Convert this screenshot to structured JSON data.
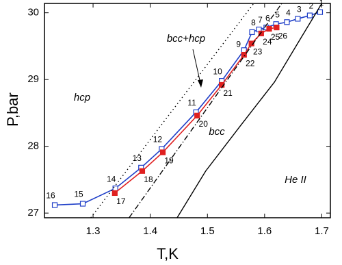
{
  "chart_data": {
    "type": "line",
    "xlabel": "T,K",
    "ylabel": "P,bar",
    "xlim": [
      1.215,
      1.715
    ],
    "ylim": [
      26.93,
      30.14
    ],
    "xticks": [
      1.3,
      1.4,
      1.5,
      1.6,
      1.7
    ],
    "yticks": [
      27,
      28,
      29,
      30
    ],
    "annotations": [
      "bcc+hcp",
      "hcp",
      "bcc",
      "He II"
    ],
    "series": [
      {
        "color": "#1f3fc8",
        "marker": "open-square",
        "x": [
          1.697,
          1.679,
          1.658,
          1.639,
          1.62,
          1.603,
          1.59,
          1.578,
          1.564,
          1.525,
          1.48,
          1.42,
          1.384,
          1.339,
          1.282,
          1.233
        ],
        "values": [
          30.01,
          29.96,
          29.91,
          29.86,
          29.83,
          29.78,
          29.75,
          29.71,
          29.44,
          28.98,
          28.51,
          27.96,
          27.68,
          27.37,
          27.14,
          27.12
        ],
        "labels": [
          "1",
          "2",
          "3",
          "4",
          "5",
          "6",
          "7",
          "8",
          "9",
          "10",
          "11",
          "12",
          "13",
          "14",
          "15",
          "16"
        ]
      },
      {
        "color": "#e02020",
        "marker": "filled-square",
        "x": [
          1.338,
          1.386,
          1.422,
          1.482,
          1.525,
          1.564,
          1.577,
          1.594,
          1.608,
          1.621
        ],
        "values": [
          27.3,
          27.63,
          27.91,
          28.46,
          28.92,
          29.37,
          29.54,
          29.69,
          29.76,
          29.78
        ],
        "labels": [
          "17",
          "18",
          "19",
          "20",
          "21",
          "22",
          "23",
          "24",
          "25",
          "26"
        ]
      },
      {
        "color": "#000000",
        "dash": "dot",
        "x": [
          1.296,
          1.581
        ],
        "values": [
          26.93,
          30.14
        ]
      },
      {
        "color": "#000000",
        "dash": "dashdot",
        "x": [
          1.363,
          1.63
        ],
        "values": [
          26.93,
          30.14
        ]
      },
      {
        "color": "#000000",
        "dash": "solid",
        "x": [
          1.447,
          1.497,
          1.557,
          1.617,
          1.664,
          1.7
        ],
        "values": [
          26.93,
          27.63,
          28.3,
          28.96,
          29.63,
          30.14
        ]
      }
    ]
  }
}
